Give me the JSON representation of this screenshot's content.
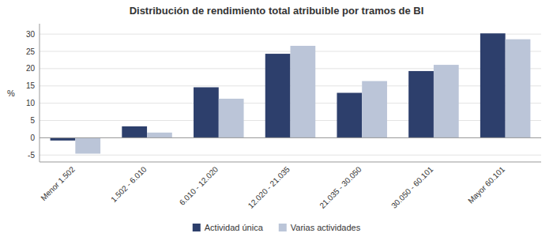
{
  "chart_data": {
    "type": "bar",
    "title": "Distribución de rendimiento total atribuible por tramos de BI",
    "categories": [
      "Menor 1.502",
      "1.502 - 6.010",
      "6.010 - 12.020",
      "12.020 - 21.035",
      "21.035 - 30.050",
      "30.050 - 60.101",
      "Mayor 60.101"
    ],
    "series": [
      {
        "name": "Actividad única",
        "color": "#2d3f6c",
        "values": [
          -0.8,
          3.3,
          14.6,
          24.3,
          13.0,
          19.3,
          30.2
        ]
      },
      {
        "name": "Varias actividades",
        "color": "#bbc5d8",
        "values": [
          -4.6,
          1.5,
          11.3,
          26.6,
          16.4,
          21.1,
          28.5
        ]
      }
    ],
    "ylabel": "%",
    "ylim": [
      -7,
      33
    ],
    "yticks": [
      -5,
      0,
      5,
      10,
      15,
      20,
      25,
      30
    ],
    "grid": true,
    "legend": "bottom"
  }
}
